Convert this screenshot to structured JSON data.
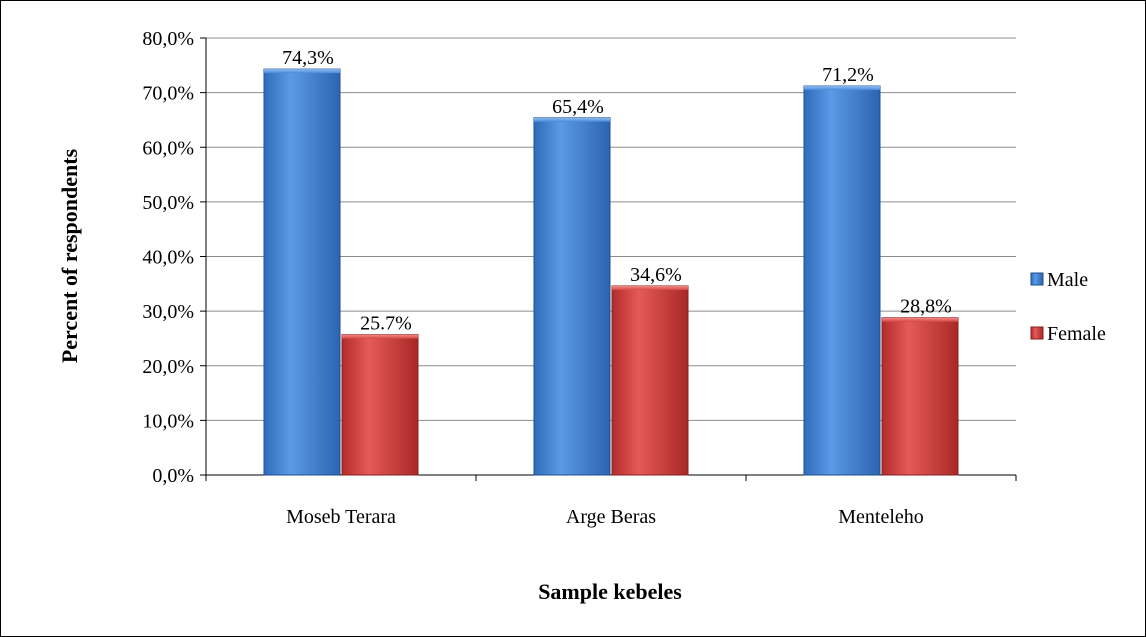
{
  "chart_data": {
    "type": "bar",
    "categories": [
      "Moseb Terara",
      "Arge Beras",
      "Menteleho"
    ],
    "series": [
      {
        "name": "Male",
        "values": [
          74.3,
          65.4,
          71.2
        ],
        "labels": [
          "74,3%",
          "65,4%",
          "71,2%"
        ],
        "color": "#3d7fd4"
      },
      {
        "name": "Female",
        "values": [
          25.7,
          34.6,
          28.8
        ],
        "labels": [
          "25.7%",
          "34,6%",
          "28,8%"
        ],
        "color": "#d23f3c"
      }
    ],
    "xlabel": "Sample kebeles",
    "ylabel": "Percent of respondents",
    "ylim": [
      0,
      80
    ],
    "yticks": [
      "0,0%",
      "10,0%",
      "20,0%",
      "30,0%",
      "40,0%",
      "50,0%",
      "60,0%",
      "70,0%",
      "80,0%"
    ],
    "grid": true,
    "legend": "right"
  }
}
